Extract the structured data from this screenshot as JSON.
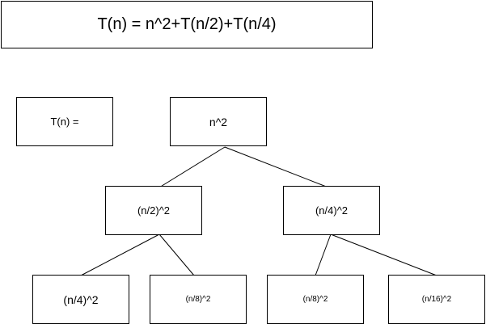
{
  "equation": "T(n) = n^2+T(n/2)+T(n/4)",
  "label": "T(n) =",
  "tree": {
    "root": "n^2",
    "level1": [
      "(n/2)^2",
      "(n/4)^2"
    ],
    "level2": [
      "(n/4)^2",
      "(n/8)^2",
      "(n/8)^2",
      "(n/16)^2"
    ]
  },
  "colors": {
    "stroke": "#000000",
    "fill": "#ffffff",
    "text": "#000000"
  }
}
